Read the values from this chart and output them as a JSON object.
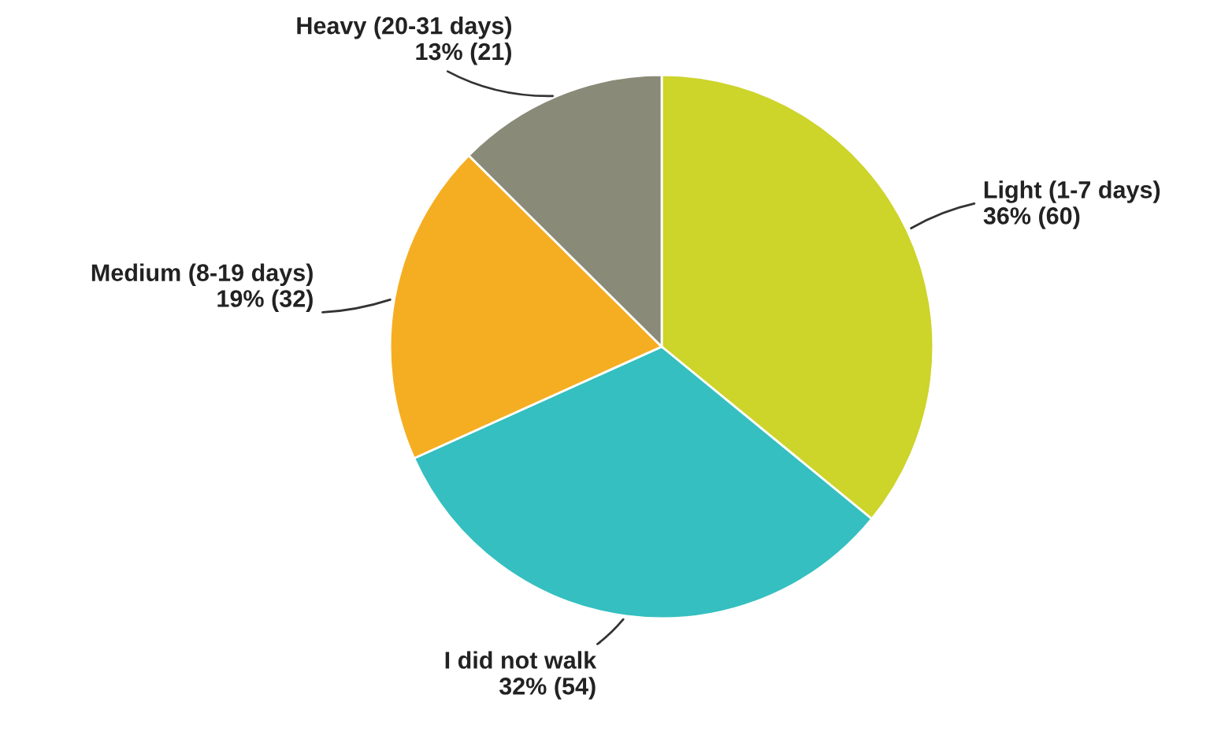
{
  "chart_data": {
    "type": "pie",
    "categories": [
      "Light (1-7 days)",
      "I did not walk",
      "Medium (8-19 days)",
      "Heavy (20-31 days)"
    ],
    "values": [
      60,
      54,
      32,
      21
    ],
    "value_labels": [
      "36% (60)",
      "32% (54)",
      "19% (32)",
      "13% (21)"
    ],
    "colors": [
      "#cdd42a",
      "#35bfc0",
      "#f5ae22",
      "#8a8a78"
    ]
  }
}
